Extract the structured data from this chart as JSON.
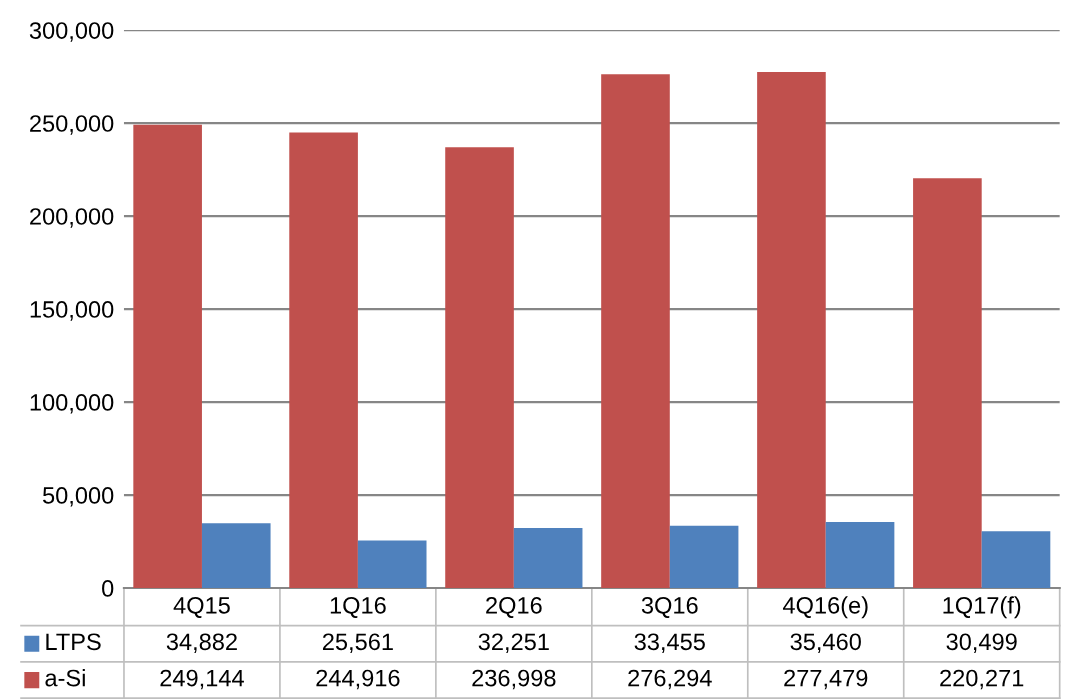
{
  "chart_data": {
    "type": "bar",
    "categories": [
      "4Q15",
      "1Q16",
      "2Q16",
      "3Q16",
      "4Q16(e)",
      "1Q17(f)"
    ],
    "series": [
      {
        "name": "a-Si",
        "color": "#c0504d",
        "values": [
          249144,
          244916,
          236998,
          276294,
          277479,
          220271
        ],
        "value_labels": [
          "249,144",
          "244,916",
          "236,998",
          "276,294",
          "277,479",
          "220,271"
        ]
      },
      {
        "name": "LTPS",
        "color": "#4f81bd",
        "values": [
          34882,
          25561,
          32251,
          33455,
          35460,
          30499
        ],
        "value_labels": [
          "34,882",
          "25,561",
          "32,251",
          "33,455",
          "35,460",
          "30,499"
        ]
      }
    ],
    "ylim": [
      0,
      300000
    ],
    "yticks": [
      {
        "value": 0,
        "label": "0"
      },
      {
        "value": 50000,
        "label": "50,000"
      },
      {
        "value": 100000,
        "label": "100,000"
      },
      {
        "value": 150000,
        "label": "150,000"
      },
      {
        "value": 200000,
        "label": "200,000"
      },
      {
        "value": 250000,
        "label": "250,000"
      },
      {
        "value": 300000,
        "label": "300,000"
      }
    ],
    "grid": "y",
    "legend": "bottom"
  }
}
